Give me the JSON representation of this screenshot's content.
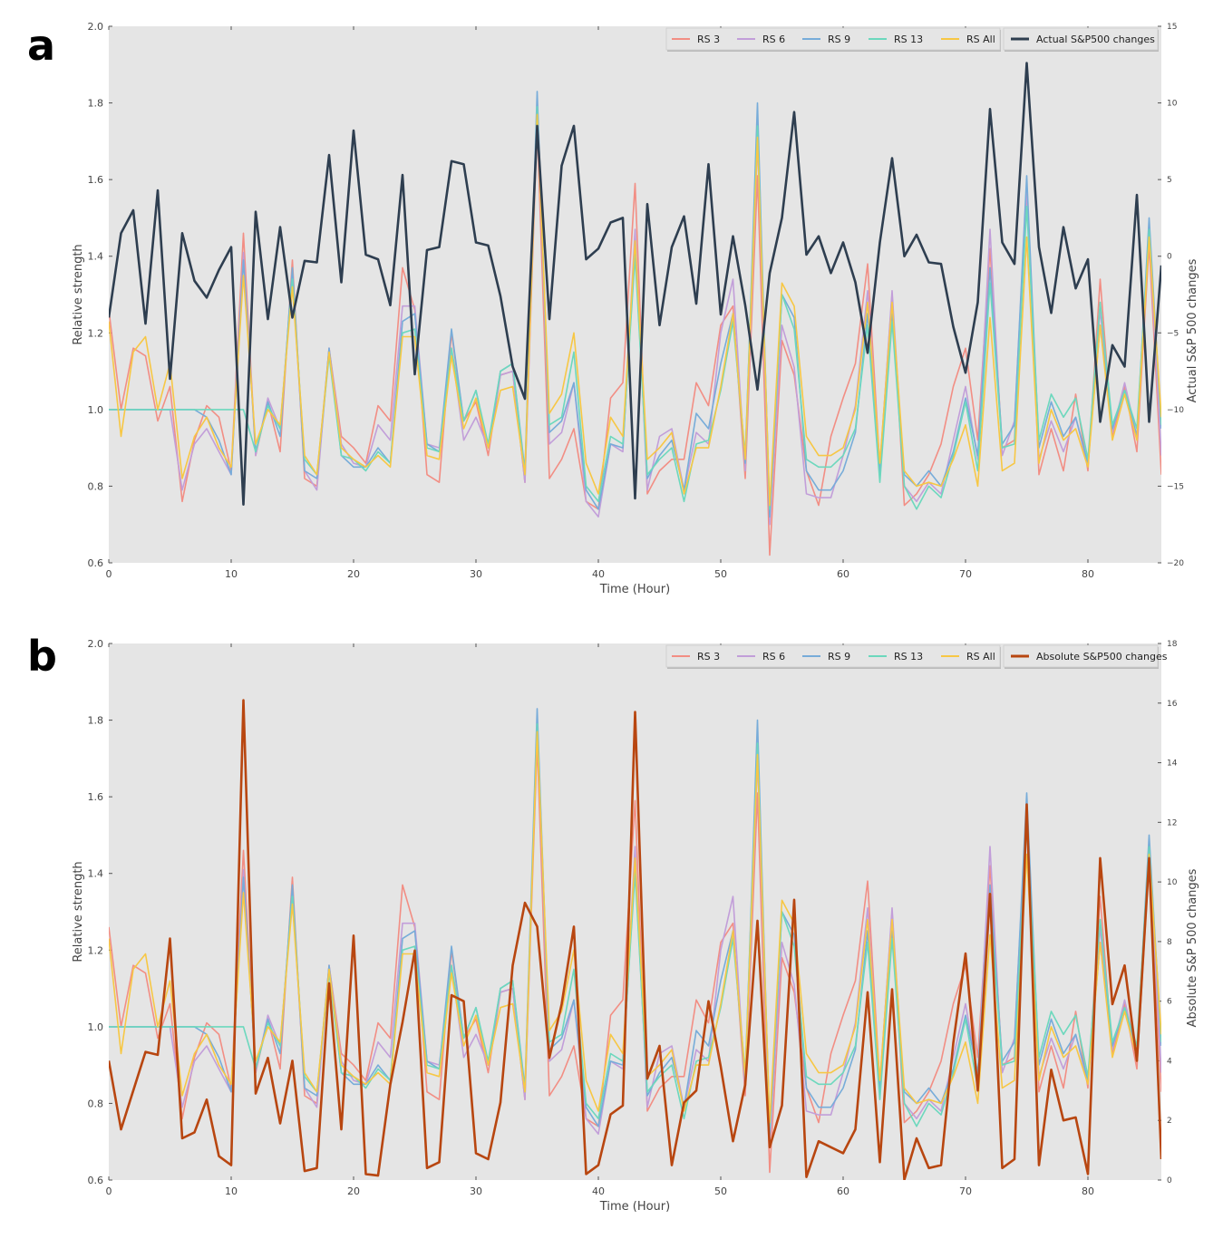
{
  "colors": {
    "plot_bg": "#e5e5e5",
    "rs3": "#f28e84",
    "rs6": "#c29ed9",
    "rs9": "#77acd9",
    "rs13": "#6cd8bd",
    "rsall": "#f7c744",
    "actual": "#2e3e50",
    "absolute": "#b84610"
  },
  "chart_data": [
    {
      "panel_label": "a",
      "type": "line",
      "xlabel": "Time (Hour)",
      "ylabel": "Relative strength",
      "y2label": "Actual S&P 500 changes",
      "xlim": [
        0,
        86
      ],
      "ylim": [
        0.6,
        2.0
      ],
      "y2lim": [
        -20,
        15
      ],
      "x_ticks": [
        "0",
        "10",
        "20",
        "30",
        "40",
        "50",
        "60",
        "70",
        "80"
      ],
      "y_ticks": [
        "0.6",
        "0.8",
        "1.0",
        "1.2",
        "1.4",
        "1.6",
        "1.8",
        "2.0"
      ],
      "y2_ticks": [
        "−20",
        "−15",
        "−10",
        "−5",
        "0",
        "5",
        "10",
        "15"
      ],
      "legend": [
        "RS 3",
        "RS 6",
        "RS 9",
        "RS 13",
        "RS All",
        "Actual S&P500 changes"
      ],
      "legend_placement": "top-right",
      "secondary_series": {
        "name": "Actual S&P500 changes",
        "values": [
          -4,
          1.5,
          3,
          -4.4,
          4.3,
          -8,
          1.5,
          -1.6,
          -2.7,
          -0.9,
          0.6,
          -16.2,
          2.9,
          -4.1,
          1.9,
          -4,
          -0.3,
          -0.4,
          6.6,
          -1.7,
          8.2,
          0.1,
          -0.2,
          -3.2,
          5.3,
          -7.7,
          0.4,
          0.6,
          6.2,
          6,
          0.9,
          0.7,
          -2.6,
          -7.2,
          -9.3,
          8.5,
          -4.1,
          5.9,
          8.5,
          -0.2,
          0.5,
          2.2,
          2.5,
          -15.8,
          3.4,
          -4.5,
          0.6,
          2.6,
          -3.1,
          6,
          -3.8,
          1.3,
          -3.2,
          -8.7,
          -1.1,
          2.5,
          9.4,
          0.1,
          1.3,
          -1.1,
          0.9,
          -1.7,
          -6.3,
          0.9,
          6.4,
          0,
          1.4,
          -0.4,
          -0.5,
          -4.6,
          -7.6,
          -3,
          9.6,
          0.9,
          -0.5,
          12.6,
          0.6,
          -3.7,
          1.9,
          -2.1,
          -0.2,
          -10.8,
          -5.8,
          -7.2,
          4,
          -10.8,
          -0.6
        ]
      }
    },
    {
      "panel_label": "b",
      "type": "line",
      "xlabel": "Time (Hour)",
      "ylabel": "Relative strength",
      "y2label": "Absolute S&P 500 changes",
      "xlim": [
        0,
        86
      ],
      "ylim": [
        0.6,
        2.0
      ],
      "y2lim": [
        0,
        18
      ],
      "x_ticks": [
        "0",
        "10",
        "20",
        "30",
        "40",
        "50",
        "60",
        "70",
        "80"
      ],
      "y_ticks": [
        "0.6",
        "0.8",
        "1.0",
        "1.2",
        "1.4",
        "1.6",
        "1.8",
        "2.0"
      ],
      "y2_ticks": [
        "0",
        "2",
        "4",
        "6",
        "8",
        "10",
        "12",
        "14",
        "16",
        "18"
      ],
      "legend": [
        "RS 3",
        "RS 6",
        "RS 9",
        "RS 13",
        "RS All",
        "Absolute S&P500 changes"
      ],
      "legend_placement": "top-right",
      "secondary_series": {
        "name": "Absolute S&P500 changes",
        "values": [
          4,
          1.7,
          3,
          4.3,
          4.2,
          8.1,
          1.4,
          1.6,
          2.7,
          0.8,
          0.5,
          16.1,
          2.9,
          4.1,
          1.9,
          4,
          0.3,
          0.4,
          6.6,
          1.7,
          8.2,
          0.2,
          0.15,
          3.2,
          5.3,
          7.7,
          0.4,
          0.6,
          6.2,
          6,
          0.9,
          0.7,
          2.6,
          7.2,
          9.3,
          8.5,
          4.1,
          5.9,
          8.5,
          0.2,
          0.5,
          2.2,
          2.5,
          15.7,
          3.4,
          4.5,
          0.5,
          2.6,
          3,
          6,
          3.8,
          1.3,
          3.2,
          8.7,
          1.1,
          2.5,
          9.4,
          0.1,
          1.3,
          1.1,
          0.9,
          1.7,
          6.3,
          0.6,
          6.4,
          0.01,
          1.4,
          0.4,
          0.5,
          4.6,
          7.6,
          3,
          9.6,
          0.4,
          0.7,
          12.6,
          0.5,
          3.7,
          2,
          2.1,
          0.2,
          10.8,
          5.9,
          7.2,
          4,
          10.8,
          0.7
        ]
      }
    }
  ],
  "rs_series": [
    {
      "name": "RS 3",
      "values": [
        1.26,
        1.0,
        1.16,
        1.14,
        0.97,
        1.06,
        0.76,
        0.92,
        1.01,
        0.98,
        0.84,
        1.46,
        0.88,
        1.02,
        0.89,
        1.39,
        0.82,
        0.8,
        1.16,
        0.93,
        0.9,
        0.86,
        1.01,
        0.97,
        1.37,
        1.26,
        0.83,
        0.81,
        1.2,
        0.97,
        1.02,
        0.88,
        1.09,
        1.1,
        0.81,
        1.74,
        0.82,
        0.87,
        0.95,
        0.76,
        0.74,
        1.03,
        1.07,
        1.59,
        0.78,
        0.84,
        0.87,
        0.87,
        1.07,
        1.01,
        1.22,
        1.27,
        0.82,
        1.61,
        0.62,
        1.18,
        1.09,
        0.84,
        0.75,
        0.93,
        1.03,
        1.12,
        1.38,
        0.85,
        1.3,
        0.75,
        0.78,
        0.83,
        0.91,
        1.06,
        1.16,
        0.92,
        1.42,
        0.9,
        0.92,
        1.58,
        0.83,
        0.95,
        0.84,
        1.04,
        0.84,
        1.34,
        0.93,
        1.06,
        0.89,
        1.43,
        0.83
      ]
    },
    {
      "name": "RS 6",
      "values": [
        1.0,
        1.0,
        1.0,
        1.0,
        1.0,
        1.0,
        0.79,
        0.91,
        0.95,
        0.89,
        0.83,
        1.41,
        0.88,
        1.03,
        0.95,
        1.35,
        0.84,
        0.79,
        1.16,
        0.91,
        0.86,
        0.85,
        0.96,
        0.92,
        1.27,
        1.27,
        0.91,
        0.9,
        1.16,
        0.92,
        0.98,
        0.9,
        1.09,
        1.1,
        0.81,
        1.8,
        0.91,
        0.94,
        1.07,
        0.76,
        0.72,
        0.91,
        0.89,
        1.47,
        0.79,
        0.93,
        0.95,
        0.79,
        0.94,
        0.91,
        1.2,
        1.34,
        0.84,
        1.7,
        0.7,
        1.22,
        1.11,
        0.78,
        0.77,
        0.77,
        0.88,
        1.01,
        1.31,
        0.84,
        1.31,
        0.8,
        0.76,
        0.81,
        0.78,
        0.92,
        1.06,
        0.87,
        1.47,
        0.88,
        0.97,
        1.58,
        0.87,
        0.97,
        0.89,
        0.98,
        0.85,
        1.26,
        0.94,
        1.07,
        0.93,
        1.46,
        0.88
      ]
    },
    {
      "name": "RS 9",
      "values": [
        1.0,
        1.0,
        1.0,
        1.0,
        1.0,
        1.0,
        1.0,
        1.0,
        0.98,
        0.92,
        0.83,
        1.39,
        0.89,
        1.02,
        0.93,
        1.37,
        0.84,
        0.82,
        1.16,
        0.88,
        0.85,
        0.85,
        0.9,
        0.86,
        1.23,
        1.25,
        0.91,
        0.89,
        1.21,
        0.97,
        1.05,
        0.9,
        1.1,
        1.12,
        0.84,
        1.83,
        0.94,
        0.97,
        1.07,
        0.79,
        0.74,
        0.91,
        0.9,
        1.42,
        0.82,
        0.88,
        0.92,
        0.79,
        0.99,
        0.95,
        1.12,
        1.25,
        0.86,
        1.8,
        0.72,
        1.3,
        1.24,
        0.84,
        0.79,
        0.79,
        0.84,
        0.94,
        1.25,
        0.83,
        1.25,
        0.83,
        0.8,
        0.84,
        0.8,
        0.89,
        1.03,
        0.88,
        1.37,
        0.91,
        0.96,
        1.61,
        0.9,
        1.02,
        0.93,
        0.98,
        0.86,
        1.22,
        0.95,
        1.05,
        0.93,
        1.5,
        0.95
      ]
    },
    {
      "name": "RS 13",
      "values": [
        1.0,
        1.0,
        1.0,
        1.0,
        1.0,
        1.0,
        1.0,
        1.0,
        1.0,
        1.0,
        1.0,
        1.0,
        0.89,
        1.01,
        0.95,
        1.34,
        0.87,
        0.83,
        1.14,
        0.88,
        0.87,
        0.84,
        0.89,
        0.86,
        1.2,
        1.21,
        0.9,
        0.89,
        1.16,
        0.97,
        1.05,
        0.91,
        1.1,
        1.12,
        0.83,
        1.79,
        0.96,
        0.98,
        1.15,
        0.8,
        0.76,
        0.93,
        0.91,
        1.4,
        0.83,
        0.87,
        0.9,
        0.76,
        0.91,
        0.92,
        1.05,
        1.23,
        0.88,
        1.74,
        0.74,
        1.3,
        1.21,
        0.87,
        0.85,
        0.85,
        0.88,
        0.95,
        1.22,
        0.81,
        1.23,
        0.8,
        0.74,
        0.8,
        0.77,
        0.88,
        1.02,
        0.84,
        1.33,
        0.9,
        0.91,
        1.53,
        0.92,
        1.04,
        0.98,
        1.03,
        0.87,
        1.28,
        0.96,
        1.05,
        0.95,
        1.47,
        0.96
      ]
    },
    {
      "name": "RS All",
      "values": [
        1.23,
        0.93,
        1.15,
        1.19,
        1.0,
        1.12,
        0.82,
        0.93,
        0.98,
        0.9,
        0.85,
        1.35,
        0.91,
        1.0,
        0.96,
        1.32,
        0.88,
        0.83,
        1.15,
        0.9,
        0.87,
        0.85,
        0.88,
        0.85,
        1.19,
        1.19,
        0.88,
        0.87,
        1.14,
        0.95,
        1.03,
        0.9,
        1.05,
        1.06,
        0.83,
        1.77,
        0.99,
        1.04,
        1.2,
        0.86,
        0.78,
        0.98,
        0.93,
        1.44,
        0.87,
        0.9,
        0.94,
        0.78,
        0.9,
        0.9,
        1.06,
        1.25,
        0.87,
        1.71,
        0.75,
        1.33,
        1.27,
        0.93,
        0.88,
        0.88,
        0.9,
        1.0,
        1.28,
        0.86,
        1.28,
        0.84,
        0.8,
        0.81,
        0.8,
        0.87,
        0.96,
        0.8,
        1.24,
        0.84,
        0.86,
        1.45,
        0.86,
        1.0,
        0.92,
        0.95,
        0.85,
        1.22,
        0.92,
        1.04,
        0.92,
        1.45,
        0.98
      ]
    }
  ]
}
